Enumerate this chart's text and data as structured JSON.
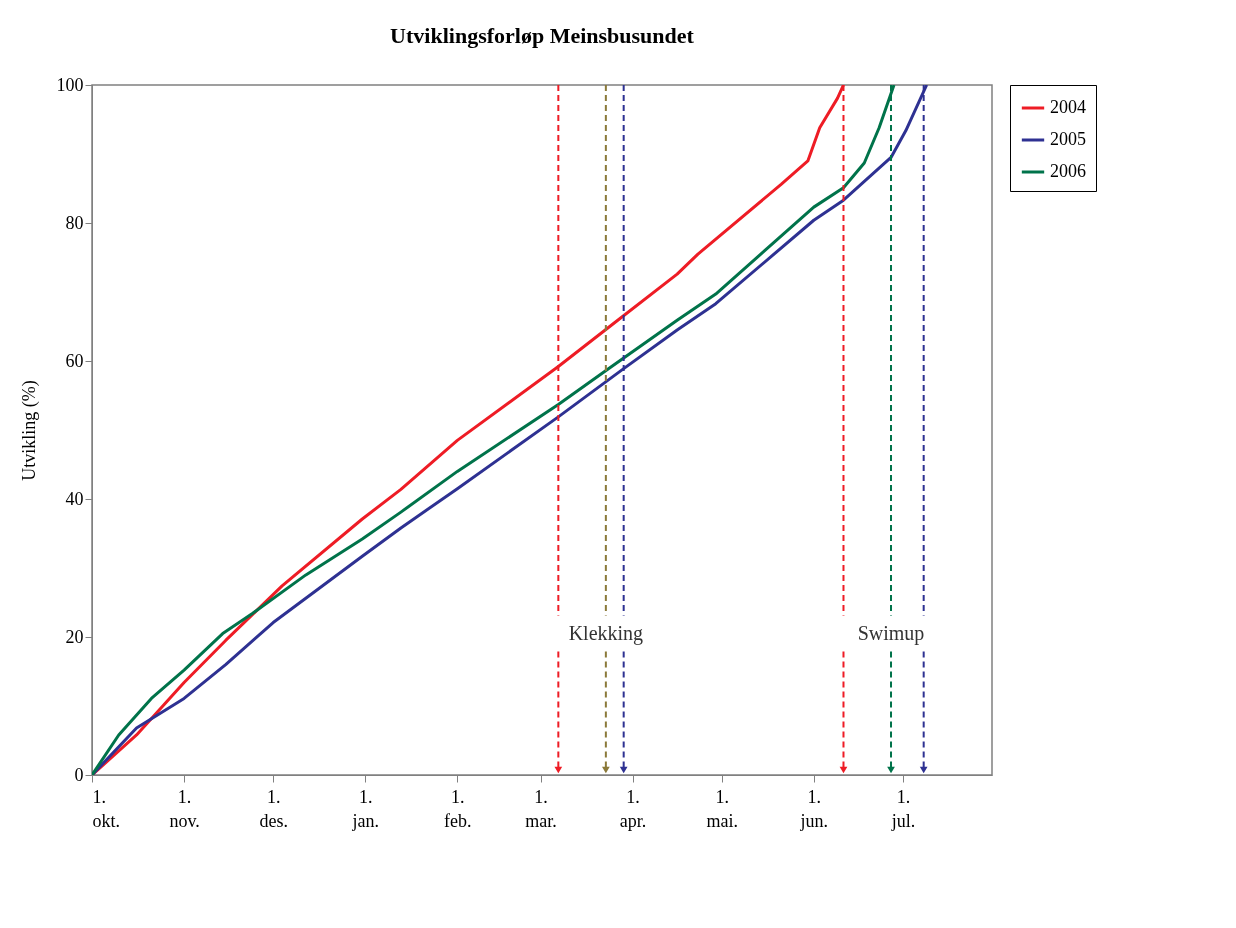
{
  "chart_data": {
    "type": "line",
    "title": "Utviklingsforløp Meinsbusundet",
    "ylabel": "Utvikling (%)",
    "xlim": [
      "2004-10-01",
      "2005-07-31"
    ],
    "ylim": [
      0,
      100
    ],
    "xticks": [
      {
        "value": "2004-10-01",
        "label": "1. okt."
      },
      {
        "value": "2004-11-01",
        "label": "1. nov."
      },
      {
        "value": "2004-12-01",
        "label": "1. des."
      },
      {
        "value": "2005-01-01",
        "label": "1. jan."
      },
      {
        "value": "2005-02-01",
        "label": "1. feb."
      },
      {
        "value": "2005-03-01",
        "label": "1. mar."
      },
      {
        "value": "2005-04-01",
        "label": "1. apr."
      },
      {
        "value": "2005-05-01",
        "label": "1. mai."
      },
      {
        "value": "2005-06-01",
        "label": "1. jun."
      },
      {
        "value": "2005-07-01",
        "label": "1. jul."
      }
    ],
    "yticks": [
      0,
      20,
      40,
      60,
      80,
      100
    ],
    "grid": false,
    "legend": "right",
    "series": [
      {
        "name": "2004",
        "color": "#ee1c25",
        "x": [
          "2004-10-01",
          "2004-10-16",
          "2004-11-01",
          "2004-11-15",
          "2004-12-04",
          "2004-12-31",
          "2005-01-13",
          "2005-02-01",
          "2005-03-07",
          "2005-03-27",
          "2005-04-16",
          "2005-04-23",
          "2005-05-21",
          "2005-05-30",
          "2005-06-03",
          "2005-06-09",
          "2005-06-11"
        ],
        "values": [
          0,
          5.8,
          13.4,
          19.5,
          27.4,
          37.1,
          41.4,
          48.5,
          59.2,
          65.9,
          72.6,
          75.5,
          85.6,
          89,
          93.8,
          98.1,
          100
        ]
      },
      {
        "name": "2005",
        "color": "#2e3192",
        "x": [
          "2004-10-01",
          "2004-10-16",
          "2004-11-01",
          "2004-11-15",
          "2004-12-01",
          "2004-12-31",
          "2005-01-13",
          "2005-02-01",
          "2005-03-07",
          "2005-03-29",
          "2005-04-16",
          "2005-04-29",
          "2005-06-01",
          "2005-06-11",
          "2005-06-27",
          "2005-07-02",
          "2005-07-09"
        ],
        "values": [
          0,
          6.8,
          11.1,
          16,
          22.1,
          31.7,
          35.8,
          41.5,
          51.9,
          58.9,
          64.5,
          68.3,
          80.4,
          83.3,
          89.5,
          93.4,
          100
        ]
      },
      {
        "name": "2006",
        "color": "#00734a",
        "x": [
          "2004-10-01",
          "2004-10-10",
          "2004-10-21",
          "2004-11-01",
          "2004-11-14",
          "2004-11-24",
          "2004-12-12",
          "2004-12-31",
          "2005-01-13",
          "2005-02-01",
          "2005-03-07",
          "2005-03-24",
          "2005-04-16",
          "2005-04-29",
          "2005-06-01",
          "2005-06-11",
          "2005-06-18",
          "2005-06-23",
          "2005-06-28"
        ],
        "values": [
          0,
          5.8,
          11.1,
          15.2,
          20.5,
          23.4,
          29,
          34.2,
          38.1,
          44,
          53.7,
          58.9,
          65.9,
          69.7,
          82.3,
          85.1,
          88.7,
          93.8,
          100
        ]
      }
    ],
    "ref_lines": [
      {
        "axis": "x",
        "value": "2005-03-07",
        "color": "#ee1c25",
        "line_style": "dashed"
      },
      {
        "axis": "x",
        "value": "2005-03-23",
        "color": "#8b7a3a",
        "line_style": "dashed",
        "label": "Klekking"
      },
      {
        "axis": "x",
        "value": "2005-03-29",
        "color": "#2e3192",
        "line_style": "dashed"
      },
      {
        "axis": "x",
        "value": "2005-06-11",
        "color": "#ee1c25",
        "line_style": "dashed"
      },
      {
        "axis": "x",
        "value": "2005-06-27",
        "color": "#00734a",
        "line_style": "dashed",
        "label": "Swimup"
      },
      {
        "axis": "x",
        "value": "2005-07-08",
        "color": "#2e3192",
        "line_style": "dashed"
      }
    ]
  }
}
